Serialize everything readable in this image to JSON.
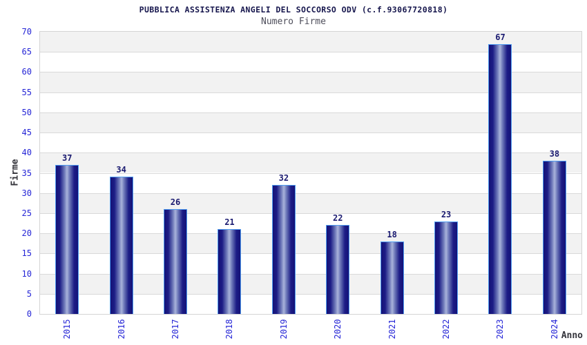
{
  "header": {
    "title": "PUBBLICA ASSISTENZA ANGELI DEL SOCCORSO ODV (c.f.93067720818)",
    "subtitle": "Numero Firme"
  },
  "chart_data": {
    "type": "bar",
    "title": "PUBBLICA ASSISTENZA ANGELI DEL SOCCORSO ODV (c.f.93067720818)",
    "subtitle": "Numero Firme",
    "xlabel": "Anno",
    "ylabel": "Firme",
    "categories": [
      "2015",
      "2016",
      "2017",
      "2018",
      "2019",
      "2020",
      "2021",
      "2022",
      "2023",
      "2024"
    ],
    "values": [
      37,
      34,
      26,
      21,
      32,
      22,
      18,
      23,
      67,
      38
    ],
    "ylim": [
      0,
      70
    ],
    "ytick_step": 5,
    "yticks": [
      0,
      5,
      10,
      15,
      20,
      25,
      30,
      35,
      40,
      45,
      50,
      55,
      60,
      65,
      70
    ],
    "grid": "horizontal-bands",
    "legend": null,
    "data_labels": true
  },
  "colors": {
    "bar_dark": "#141277",
    "bar_light": "#a9b3db",
    "bar_border": "#4f9df2",
    "axis_text": "#2424d6",
    "data_label": "#1a1a70",
    "band_gray": "#f2f2f2",
    "band_white": "#ffffff",
    "gridline": "#d9d9d9",
    "title_text": "#16164d",
    "axis_title_text": "#33333a"
  }
}
